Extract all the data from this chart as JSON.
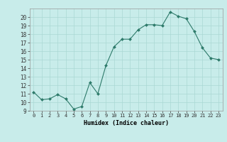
{
  "x": [
    0,
    1,
    2,
    3,
    4,
    5,
    6,
    7,
    8,
    9,
    10,
    11,
    12,
    13,
    14,
    15,
    16,
    17,
    18,
    19,
    20,
    21,
    22,
    23
  ],
  "y": [
    11.2,
    10.3,
    10.4,
    10.9,
    10.4,
    9.2,
    9.5,
    12.3,
    11.0,
    14.3,
    16.5,
    17.4,
    17.4,
    18.5,
    19.1,
    19.1,
    19.0,
    20.6,
    20.1,
    19.8,
    18.3,
    16.4,
    15.2,
    15.0
  ],
  "xlabel": "Humidex (Indice chaleur)",
  "xlim": [
    -0.5,
    23.5
  ],
  "ylim": [
    9,
    21
  ],
  "yticks": [
    9,
    10,
    11,
    12,
    13,
    14,
    15,
    16,
    17,
    18,
    19,
    20
  ],
  "xticks": [
    0,
    1,
    2,
    3,
    4,
    5,
    6,
    7,
    8,
    9,
    10,
    11,
    12,
    13,
    14,
    15,
    16,
    17,
    18,
    19,
    20,
    21,
    22,
    23
  ],
  "line_color": "#2d7a6a",
  "marker": "D",
  "marker_size": 2.0,
  "bg_color": "#c8ecea",
  "grid_color": "#aad8d4",
  "spine_color": "#999999",
  "tick_color": "#333333"
}
